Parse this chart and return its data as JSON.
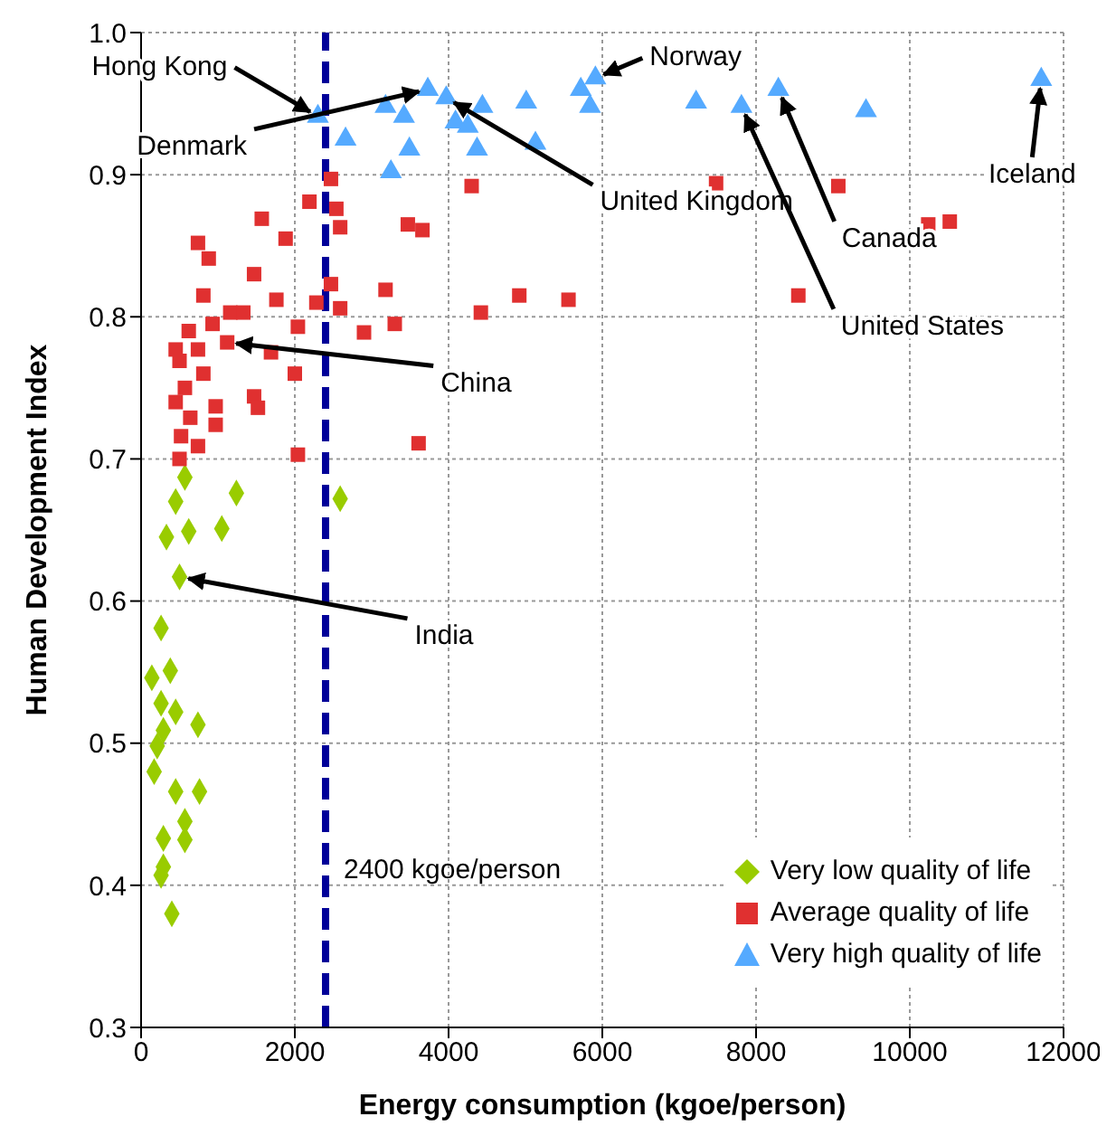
{
  "chart_data": {
    "type": "scatter",
    "xlabel": "Energy consumption (kgoe/person)",
    "ylabel": "Human Development Index",
    "xlim": [
      0,
      12000
    ],
    "xticks": [
      0,
      2000,
      4000,
      6000,
      8000,
      10000,
      12000
    ],
    "ylim": [
      0.3,
      1
    ],
    "yticks": [
      0.3,
      0.4,
      0.5,
      0.6,
      0.7,
      0.8,
      0.9,
      {
        "value": 1,
        "label": "1.0"
      }
    ],
    "grid": true,
    "legend": "bottom right",
    "series": [
      {
        "name": "Very low quality of life",
        "color": "#99cc00",
        "marker": "diamond",
        "x": [
          570,
          1240,
          450,
          2590,
          330,
          620,
          1050,
          500,
          260,
          140,
          380,
          260,
          450,
          740,
          290,
          210,
          170,
          450,
          760,
          570,
          290,
          570,
          260,
          290,
          400
        ],
        "values": [
          0.687,
          0.676,
          0.67,
          0.672,
          0.645,
          0.649,
          0.651,
          0.617,
          0.581,
          0.546,
          0.551,
          0.528,
          0.522,
          0.513,
          0.509,
          0.498,
          0.48,
          0.466,
          0.466,
          0.445,
          0.433,
          0.432,
          0.407,
          0.413,
          0.38
        ]
      },
      {
        "name": "Average quality of life",
        "color": "#e03030",
        "marker": "square",
        "x": [
          2470,
          2190,
          2540,
          2590,
          1570,
          1880,
          740,
          880,
          1470,
          1760,
          2470,
          2280,
          2590,
          2040,
          2900,
          3180,
          3300,
          3470,
          3660,
          4300,
          4420,
          4920,
          5560,
          2000,
          1690,
          1470,
          1520,
          2040,
          3610,
          810,
          1160,
          1330,
          620,
          930,
          740,
          1120,
          450,
          500,
          810,
          570,
          450,
          970,
          640,
          970,
          520,
          740,
          500,
          7480,
          9070,
          8550,
          10240,
          10520
        ],
        "values": [
          0.897,
          0.881,
          0.876,
          0.863,
          0.869,
          0.855,
          0.852,
          0.841,
          0.83,
          0.812,
          0.823,
          0.81,
          0.806,
          0.793,
          0.789,
          0.819,
          0.795,
          0.865,
          0.861,
          0.892,
          0.803,
          0.815,
          0.812,
          0.76,
          0.775,
          0.744,
          0.736,
          0.703,
          0.711,
          0.815,
          0.803,
          0.803,
          0.79,
          0.795,
          0.777,
          0.782,
          0.777,
          0.769,
          0.76,
          0.75,
          0.74,
          0.737,
          0.729,
          0.724,
          0.716,
          0.709,
          0.7,
          0.894,
          0.892,
          0.815,
          0.865,
          0.867
        ]
      },
      {
        "name": "Very high quality of life",
        "color": "#55aaff",
        "marker": "triangle",
        "x": [
          2300,
          2660,
          3180,
          3250,
          3490,
          3730,
          3970,
          4250,
          4370,
          4440,
          5010,
          5130,
          5720,
          5910,
          5840,
          7220,
          7810,
          8290,
          9430,
          11710,
          3420,
          4090
        ],
        "values": [
          0.941,
          0.925,
          0.948,
          0.902,
          0.918,
          0.96,
          0.954,
          0.934,
          0.918,
          0.948,
          0.951,
          0.922,
          0.96,
          0.968,
          0.948,
          0.951,
          0.948,
          0.96,
          0.945,
          0.967,
          0.941,
          0.937
        ]
      }
    ],
    "ref_lines": [
      {
        "axis": "x",
        "value": 2400,
        "label": "2400 kgoe/person",
        "color": "#000099",
        "line_style": "dashed"
      }
    ],
    "annotations": [
      {
        "text": "Hong Kong",
        "x": 2300,
        "y": 0.941
      },
      {
        "text": "Denmark",
        "x": 3730,
        "y": 0.96
      },
      {
        "text": "United Kingdom",
        "x": 3970,
        "y": 0.954
      },
      {
        "text": "Norway",
        "x": 5910,
        "y": 0.968
      },
      {
        "text": "Canada",
        "x": 8290,
        "y": 0.96
      },
      {
        "text": "United States",
        "x": 7810,
        "y": 0.948
      },
      {
        "text": "Iceland",
        "x": 11710,
        "y": 0.967
      },
      {
        "text": "China",
        "x": 1120,
        "y": 0.782
      },
      {
        "text": "India",
        "x": 500,
        "y": 0.617
      }
    ]
  }
}
